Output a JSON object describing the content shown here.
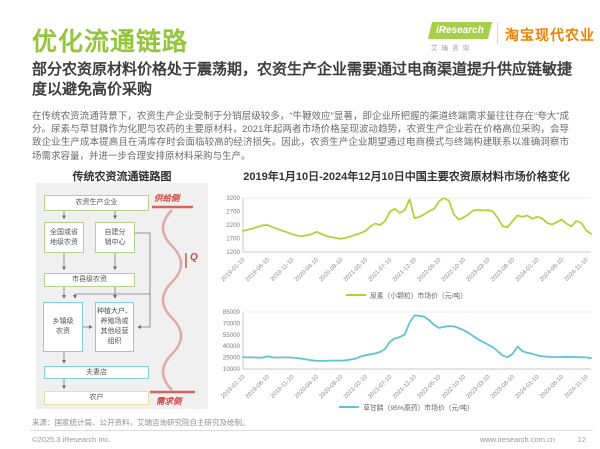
{
  "header": {
    "title": "优化流通链路",
    "logo": {
      "brand": "iResearch",
      "brand_sub": "艾瑞咨询",
      "partner": "淘宝现代农业"
    },
    "subtitle": "部分农资原材料价格处于震荡期，农资生产企业需要通过电商渠道提升供应链敏捷度以避免高价采购"
  },
  "body": {
    "paragraph": "在传统农资流通背景下，农资生产企业受制于分销层级较多，“牛鞭效应”显著，即企业所把握的渠道终端需求量往往存在“夸大”成分。尿素与草甘膦作为化肥与农药的主要原材料，2021年起两者市场价格呈现波动趋势，农资生产企业若在价格高位采购，会导致企业生产成本提高且在清库存时会面临较高的经济损失。因此，农资生产企业期望通过电商模式与终端构建联系以准确洞察市场需求容量，并进一步合理安排原材料采购与生产。"
  },
  "flowchart": {
    "title": "传统农资流通链路图",
    "boxes": {
      "producer": "农资生产企业",
      "national": "全国或省\n地级农资",
      "selfdist": "自建分\n销中心",
      "city": "市县级农资",
      "town": "乡镇级\n农资",
      "bigfarm": "种植大户、\n养殖场或\n其他经营\n组织",
      "couple": "夫妻店",
      "farmer": "农户"
    },
    "supply_label": "供给侧",
    "demand_label": "需求侧",
    "q_label": "Q",
    "accent_red": "#cf4a41"
  },
  "charts_section": {
    "title": "2019年1月10日-2024年12月10日中国主要农资原材料市场价格变化"
  },
  "chart_data": [
    {
      "type": "line",
      "name": "尿素（小颗粒）市场价（元/吨）",
      "color": "#b2d23b",
      "ylim": [
        1200,
        3200
      ],
      "yticks": [
        1200,
        1700,
        2200,
        2700,
        3200
      ],
      "x_tick_labels": [
        "2019-01-10",
        "2019-06-10",
        "2019-11-10",
        "2020-04-10",
        "2020-09-10",
        "2021-02-10",
        "2021-07-10",
        "2021-12-10",
        "2022-05-10",
        "2022-10-10",
        "2023-03-10",
        "2023-08-10",
        "2024-01-10",
        "2024-06-10",
        "2024-11-10"
      ],
      "values": [
        1980,
        2030,
        2070,
        2130,
        2190,
        2200,
        2120,
        2060,
        1990,
        1930,
        1860,
        1810,
        1790,
        1820,
        1860,
        1950,
        1870,
        1790,
        1750,
        1720,
        1690,
        1730,
        1780,
        1840,
        1900,
        1980,
        2150,
        2250,
        2200,
        2350,
        2700,
        2800,
        2650,
        2750,
        3150,
        2450,
        2500,
        2600,
        2720,
        2800,
        3080,
        3200,
        3100,
        2600,
        2400,
        2480,
        2600,
        2740,
        2760,
        2740,
        2750,
        2700,
        2450,
        2150,
        2120,
        2350,
        2550,
        2500,
        2550,
        2430,
        2500,
        2450,
        2280,
        2220,
        2300,
        2400,
        2250,
        2150,
        2350,
        2280,
        2000,
        1870
      ]
    },
    {
      "type": "line",
      "name": "草甘膦（95%原药）市场价（元/吨）",
      "color": "#5ec4d6",
      "ylim": [
        10000,
        85000
      ],
      "yticks": [
        10000,
        25000,
        40000,
        55000,
        70000,
        85000
      ],
      "x_tick_labels": [
        "2019-01-10",
        "2019-06-10",
        "2019-11-10",
        "2020-04-10",
        "2020-09-10",
        "2021-02-10",
        "2021-07-10",
        "2021-12-10",
        "2022-05-10",
        "2022-10-10",
        "2023-03-10",
        "2023-08-10",
        "2024-01-10",
        "2024-06-10",
        "2024-11-10"
      ],
      "values": [
        25500,
        25300,
        25200,
        25000,
        25000,
        26800,
        25200,
        25000,
        25200,
        25300,
        25000,
        24500,
        23500,
        22500,
        21500,
        20800,
        20600,
        20800,
        21000,
        21200,
        21000,
        21500,
        22500,
        23500,
        26500,
        28000,
        29500,
        30500,
        32500,
        36500,
        46000,
        50500,
        52000,
        55500,
        71000,
        80500,
        80000,
        78500,
        74000,
        68000,
        64000,
        65500,
        66500,
        66000,
        64000,
        61000,
        57500,
        53000,
        49000,
        45500,
        42000,
        38500,
        33000,
        27500,
        25500,
        30000,
        39500,
        33500,
        31500,
        30000,
        28000,
        27000,
        26200,
        25800,
        25600,
        25800,
        26000,
        25800,
        25600,
        25400,
        25200,
        24300
      ]
    }
  ],
  "footer": {
    "source": "来源：国家统计局、公开资料，艾瑞咨询研究院自主研究及绘制。",
    "copyright": "©2025.3 iResearch Inc.",
    "site": "www.iresearch.com.cn",
    "page": "12"
  }
}
